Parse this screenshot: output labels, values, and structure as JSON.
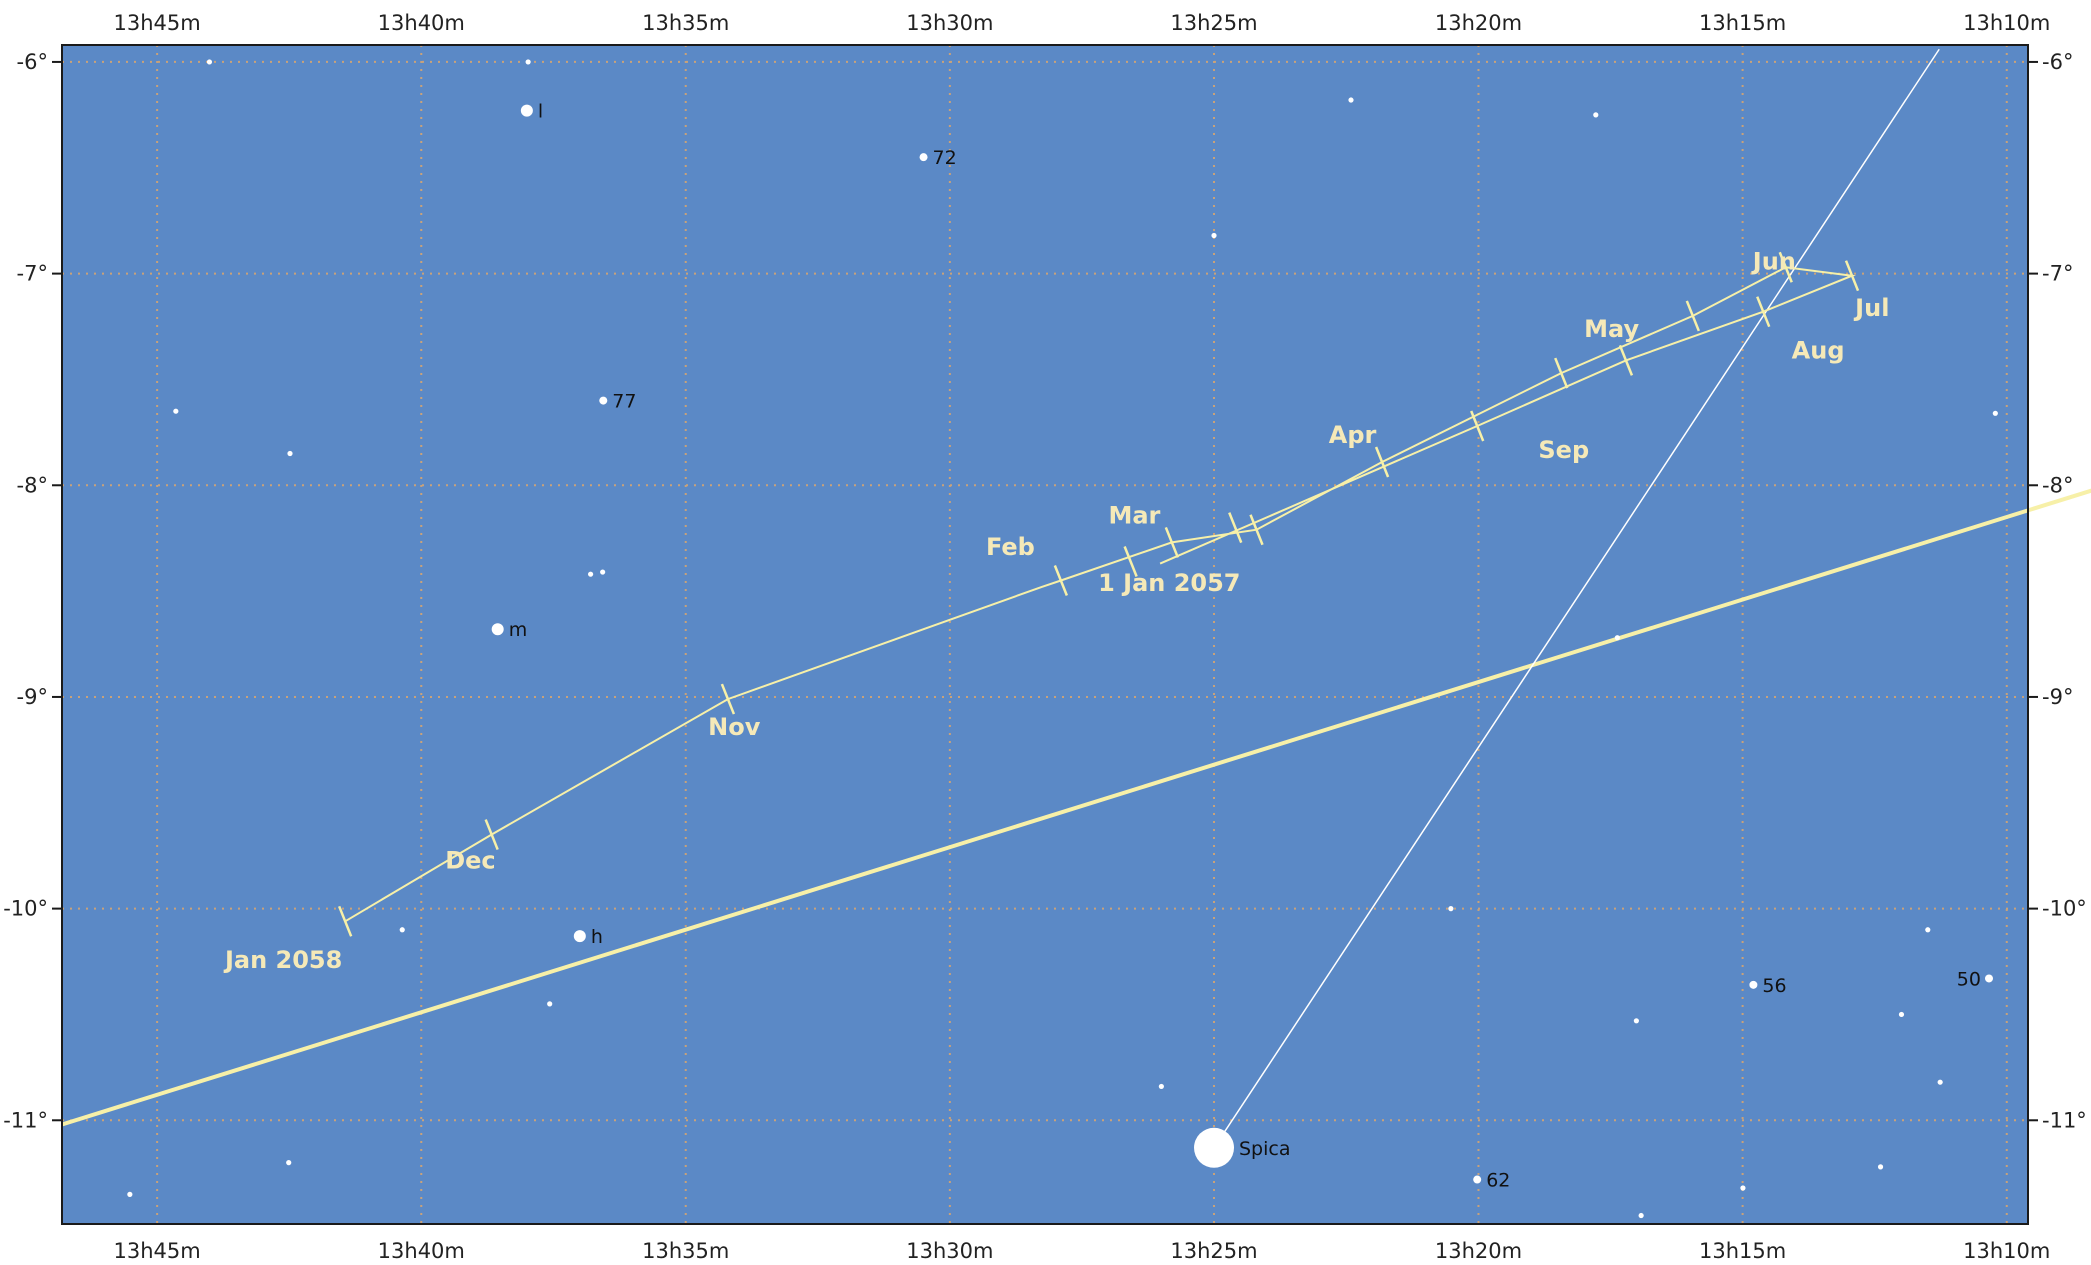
{
  "chart_data": {
    "type": "star_chart",
    "colors": {
      "sky": "#5b89c6",
      "grid": "#c9a27a",
      "path": "#f7f0a8",
      "ecliptic": "#f7f0a8",
      "stars": "#ffffff",
      "frame": "#1a1a1a",
      "month_text": "#f5e9b8"
    },
    "ra_ticks": [
      "13h45m",
      "13h40m",
      "13h35m",
      "13h30m",
      "13h25m",
      "13h20m",
      "13h15m",
      "13h10m"
    ],
    "dec_ticks": [
      "-6°",
      "-7°",
      "-8°",
      "-9°",
      "-10°",
      "-11°"
    ],
    "ra_range_min": [
      13.0,
      13.78
    ],
    "dec_range": [
      -6.0,
      -11.5
    ],
    "stars": [
      {
        "ra": 13.7085,
        "dec": -11.2,
        "mag": 3,
        "label": ""
      },
      {
        "ra": 13.7335,
        "dec": -6.0,
        "mag": 3,
        "label": ""
      },
      {
        "ra": 13.7441,
        "dec": -7.65,
        "mag": 3,
        "label": ""
      },
      {
        "ra": 13.7586,
        "dec": -11.35,
        "mag": 3,
        "label": ""
      },
      {
        "ra": 13.6426,
        "dec": -8.68,
        "mag": 1,
        "label": "m"
      },
      {
        "ra": 13.6262,
        "dec": -10.45,
        "mag": 3,
        "label": ""
      },
      {
        "ra": 13.6727,
        "dec": -10.1,
        "mag": 3,
        "label": ""
      },
      {
        "ra": 13.7081,
        "dec": -7.85,
        "mag": 3,
        "label": ""
      },
      {
        "ra": 13.6093,
        "dec": -7.6,
        "mag": 2,
        "label": "77"
      },
      {
        "ra": 13.6095,
        "dec": -8.41,
        "mag": 3,
        "label": ""
      },
      {
        "ra": 13.6133,
        "dec": -8.42,
        "mag": 3,
        "label": ""
      },
      {
        "ra": 13.6167,
        "dec": -10.13,
        "mag": 1,
        "label": "h"
      },
      {
        "ra": 13.6334,
        "dec": -6.23,
        "mag": 1,
        "label": "l"
      },
      {
        "ra": 13.633,
        "dec": -6.0,
        "mag": 3,
        "label": ""
      },
      {
        "ra": 13.5083,
        "dec": -6.45,
        "mag": 2,
        "label": "72"
      },
      {
        "ra": 13.4167,
        "dec": -6.82,
        "mag": 3,
        "label": ""
      },
      {
        "ra": 13.4167,
        "dec": -11.13,
        "mag": 0,
        "label": "Spica"
      },
      {
        "ra": 13.4333,
        "dec": -10.84,
        "mag": 3,
        "label": ""
      },
      {
        "ra": 13.3735,
        "dec": -6.18,
        "mag": 3,
        "label": ""
      },
      {
        "ra": 13.342,
        "dec": -10.0,
        "mag": 3,
        "label": ""
      },
      {
        "ra": 13.3337,
        "dec": -11.28,
        "mag": 2,
        "label": "62"
      },
      {
        "ra": 13.2963,
        "dec": -6.25,
        "mag": 3,
        "label": ""
      },
      {
        "ra": 13.2895,
        "dec": -8.72,
        "mag": 3,
        "label": ""
      },
      {
        "ra": 13.2835,
        "dec": -10.53,
        "mag": 3,
        "label": ""
      },
      {
        "ra": 13.282,
        "dec": -11.45,
        "mag": 3,
        "label": ""
      },
      {
        "ra": 13.2499,
        "dec": -11.32,
        "mag": 3,
        "label": ""
      },
      {
        "ra": 13.2466,
        "dec": -10.36,
        "mag": 2,
        "label": "56"
      },
      {
        "ra": 13.2065,
        "dec": -11.22,
        "mag": 3,
        "label": ""
      },
      {
        "ra": 13.1999,
        "dec": -10.5,
        "mag": 3,
        "label": ""
      },
      {
        "ra": 13.1877,
        "dec": -10.82,
        "mag": 3,
        "label": ""
      },
      {
        "ra": 13.1916,
        "dec": -10.1,
        "mag": 3,
        "label": ""
      },
      {
        "ra": 13.1723,
        "dec": -10.33,
        "mag": 2,
        "label": "50"
      },
      {
        "ra": 13.1703,
        "dec": -7.66,
        "mag": 3,
        "label": ""
      }
    ],
    "comet_path": [
      {
        "ra": 13.6907,
        "dec": -10.06
      },
      {
        "ra": 13.6445,
        "dec": -9.65
      },
      {
        "ra": 13.57,
        "dec": -9.01
      },
      {
        "ra": 13.471,
        "dec": -8.48
      },
      {
        "ra": 13.465,
        "dec": -8.45
      },
      {
        "ra": 13.43,
        "dec": -8.27
      },
      {
        "ra": 13.4033,
        "dec": -8.21
      },
      {
        "ra": 13.3637,
        "dec": -7.89
      },
      {
        "ra": 13.3072,
        "dec": -7.47
      },
      {
        "ra": 13.2657,
        "dec": -7.2
      },
      {
        "ra": 13.2364,
        "dec": -6.97
      },
      {
        "ra": 13.2155,
        "dec": -7.01
      },
      {
        "ra": 13.2435,
        "dec": -7.18
      },
      {
        "ra": 13.2868,
        "dec": -7.41
      },
      {
        "ra": 13.3337,
        "dec": -7.72
      },
      {
        "ra": 13.3952,
        "dec": -8.12
      },
      {
        "ra": 13.4337,
        "dec": -8.37
      }
    ],
    "ecliptic": [
      {
        "ra": 13.78,
        "dec": -11.02
      },
      {
        "ra": 13.0,
        "dec": -7.37
      }
    ],
    "pointer_line": [
      {
        "ra": 13.4167,
        "dec": -11.13
      },
      {
        "ra": 13.188,
        "dec": -5.94
      }
    ],
    "labels": [
      {
        "text": "1 Jan 2057",
        "ra": 13.4308,
        "dec": -8.5,
        "anchor": "middle"
      },
      {
        "text": "Feb",
        "ra": 13.4809,
        "dec": -8.33,
        "anchor": "middle"
      },
      {
        "text": "Mar",
        "ra": 13.4418,
        "dec": -8.18,
        "anchor": "middle"
      },
      {
        "text": "Apr",
        "ra": 13.373,
        "dec": -7.8,
        "anchor": "middle"
      },
      {
        "text": "May",
        "ra": 13.2913,
        "dec": -7.3,
        "anchor": "middle"
      },
      {
        "text": "Jun",
        "ra": 13.24,
        "dec": -6.98,
        "anchor": "middle"
      },
      {
        "text": "Jul",
        "ra": 13.2091,
        "dec": -7.2,
        "anchor": "middle"
      },
      {
        "text": "Aug",
        "ra": 13.2262,
        "dec": -7.4,
        "anchor": "middle"
      },
      {
        "text": "Sep",
        "ra": 13.3064,
        "dec": -7.87,
        "anchor": "middle"
      },
      {
        "text": "Nov",
        "ra": 13.568,
        "dec": -9.18,
        "anchor": "middle"
      },
      {
        "text": "Dec",
        "ra": 13.6512,
        "dec": -9.81,
        "anchor": "middle"
      },
      {
        "text": "Jan 2058",
        "ra": 13.7101,
        "dec": -10.28,
        "anchor": "middle"
      }
    ],
    "month_ticks": [
      {
        "ra": 13.6907,
        "dec": -10.06
      },
      {
        "ra": 13.6445,
        "dec": -9.65
      },
      {
        "ra": 13.57,
        "dec": -9.01
      },
      {
        "ra": 13.465,
        "dec": -8.45
      },
      {
        "ra": 13.43,
        "dec": -8.27
      },
      {
        "ra": 13.4033,
        "dec": -8.21
      },
      {
        "ra": 13.3637,
        "dec": -7.89
      },
      {
        "ra": 13.3072,
        "dec": -7.47
      },
      {
        "ra": 13.2657,
        "dec": -7.2
      },
      {
        "ra": 13.2364,
        "dec": -6.97
      },
      {
        "ra": 13.2155,
        "dec": -7.01
      },
      {
        "ra": 13.2435,
        "dec": -7.18
      },
      {
        "ra": 13.2868,
        "dec": -7.41
      },
      {
        "ra": 13.3337,
        "dec": -7.72
      },
      {
        "ra": 13.41,
        "dec": -8.2
      },
      {
        "ra": 13.443,
        "dec": -8.36
      }
    ]
  }
}
